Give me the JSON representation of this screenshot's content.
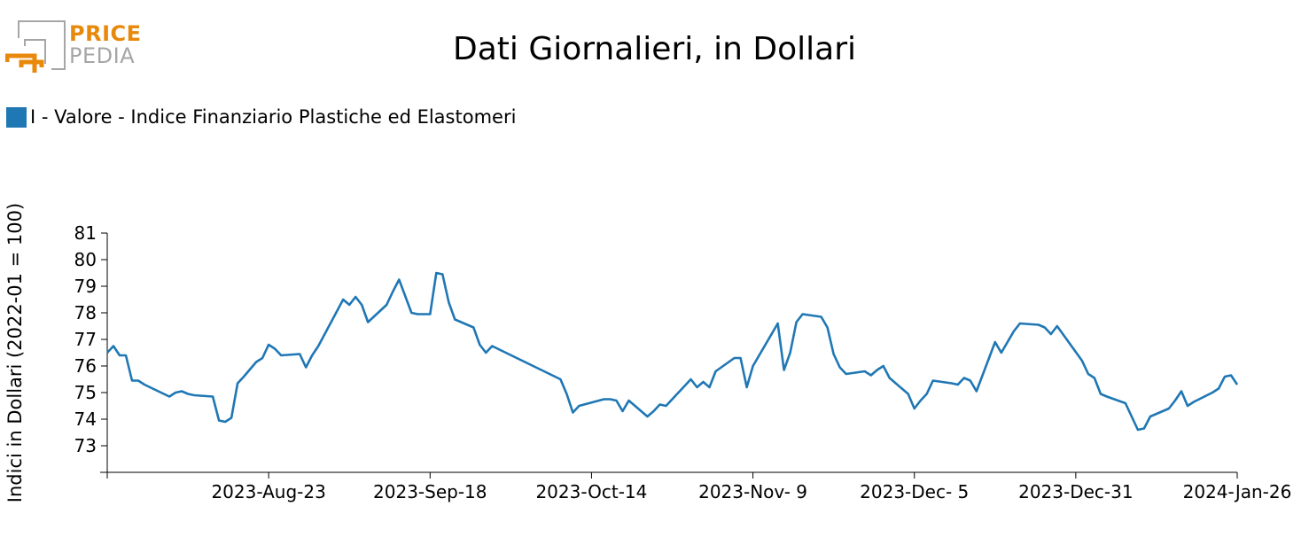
{
  "header": {
    "title": "Dati Giornalieri, in Dollari",
    "logo_line1": "PRICE",
    "logo_line2": "PEDIA",
    "logo_accent_color": "#e8890c",
    "logo_gray_color": "#a6a6a6"
  },
  "legend": {
    "label": "I - Valore - Indice Finanziario Plastiche ed Elastomeri",
    "color": "#1f77b4"
  },
  "chart_data": {
    "type": "line",
    "title": "Dati Giornalieri, in Dollari",
    "xlabel": "",
    "ylabel": "Indici in Dollari (2022-01 = 100)",
    "ylim": [
      72,
      81
    ],
    "yticks": [
      73,
      74,
      75,
      76,
      77,
      78,
      79,
      80,
      81
    ],
    "xlim": [
      "2023-07-28",
      "2024-01-26"
    ],
    "xtick_dates": [
      "2023-07-28",
      "2023-08-23",
      "2023-09-18",
      "2023-10-14",
      "2023-11-09",
      "2023-12-05",
      "2023-12-31",
      "2024-01-26"
    ],
    "xtick_labels": [
      "",
      "2023-Aug-23",
      "2023-Sep-18",
      "2023-Oct-14",
      "2023-Nov- 9",
      "2023-Dec- 5",
      "2023-Dec-31",
      "2024-Jan-26"
    ],
    "grid": false,
    "legend_position": "top-left",
    "series": [
      {
        "name": "I - Valore - Indice Finanziario Plastiche ed Elastomeri",
        "color": "#1f77b4",
        "x": [
          "2023-07-28",
          "2023-07-29",
          "2023-07-30",
          "2023-07-31",
          "2023-08-01",
          "2023-08-02",
          "2023-08-03",
          "2023-08-07",
          "2023-08-08",
          "2023-08-09",
          "2023-08-10",
          "2023-08-11",
          "2023-08-14",
          "2023-08-15",
          "2023-08-16",
          "2023-08-17",
          "2023-08-18",
          "2023-08-19",
          "2023-08-21",
          "2023-08-22",
          "2023-08-23",
          "2023-08-24",
          "2023-08-25",
          "2023-08-28",
          "2023-08-29",
          "2023-08-30",
          "2023-08-31",
          "2023-09-04",
          "2023-09-05",
          "2023-09-06",
          "2023-09-07",
          "2023-09-08",
          "2023-09-11",
          "2023-09-12",
          "2023-09-13",
          "2023-09-15",
          "2023-09-16",
          "2023-09-18",
          "2023-09-19",
          "2023-09-20",
          "2023-09-21",
          "2023-09-22",
          "2023-09-25",
          "2023-09-26",
          "2023-09-27",
          "2023-09-28",
          "2023-10-09",
          "2023-10-10",
          "2023-10-11",
          "2023-10-12",
          "2023-10-16",
          "2023-10-17",
          "2023-10-18",
          "2023-10-19",
          "2023-10-20",
          "2023-10-23",
          "2023-10-24",
          "2023-10-25",
          "2023-10-26",
          "2023-10-30",
          "2023-10-31",
          "2023-11-01",
          "2023-11-02",
          "2023-11-03",
          "2023-11-06",
          "2023-11-07",
          "2023-11-08",
          "2023-11-09",
          "2023-11-13",
          "2023-11-14",
          "2023-11-15",
          "2023-11-16",
          "2023-11-17",
          "2023-11-20",
          "2023-11-21",
          "2023-11-22",
          "2023-11-23",
          "2023-11-24",
          "2023-11-27",
          "2023-11-28",
          "2023-11-29",
          "2023-11-30",
          "2023-12-01",
          "2023-12-04",
          "2023-12-05",
          "2023-12-06",
          "2023-12-07",
          "2023-12-08",
          "2023-12-11",
          "2023-12-12",
          "2023-12-13",
          "2023-12-14",
          "2023-12-15",
          "2023-12-18",
          "2023-12-19",
          "2023-12-20",
          "2023-12-21",
          "2023-12-22",
          "2023-12-25",
          "2023-12-26",
          "2023-12-27",
          "2023-12-28",
          "2024-01-01",
          "2024-01-02",
          "2024-01-03",
          "2024-01-04",
          "2024-01-05",
          "2024-01-08",
          "2024-01-09",
          "2024-01-10",
          "2024-01-11",
          "2024-01-12",
          "2024-01-15",
          "2024-01-16",
          "2024-01-17",
          "2024-01-18",
          "2024-01-19",
          "2024-01-22",
          "2024-01-23",
          "2024-01-24",
          "2024-01-25",
          "2024-01-26"
        ],
        "y": [
          76.5,
          76.75,
          76.4,
          76.4,
          75.45,
          75.45,
          75.3,
          74.85,
          75.0,
          75.05,
          74.95,
          74.9,
          74.85,
          73.95,
          73.9,
          74.05,
          75.35,
          75.6,
          76.15,
          76.3,
          76.8,
          76.65,
          76.4,
          76.45,
          75.95,
          76.4,
          76.75,
          78.5,
          78.3,
          78.6,
          78.3,
          77.65,
          78.3,
          78.8,
          79.25,
          78.0,
          77.95,
          77.95,
          79.5,
          79.45,
          78.4,
          77.75,
          77.45,
          76.8,
          76.5,
          76.75,
          75.5,
          74.95,
          74.25,
          74.5,
          74.75,
          74.75,
          74.7,
          74.3,
          74.7,
          74.1,
          74.3,
          74.55,
          74.5,
          75.5,
          75.2,
          75.4,
          75.2,
          75.8,
          76.3,
          76.3,
          75.2,
          76.0,
          77.6,
          75.85,
          76.5,
          77.65,
          77.95,
          77.85,
          77.45,
          76.45,
          75.95,
          75.7,
          75.8,
          75.65,
          75.85,
          76.0,
          75.55,
          74.95,
          74.4,
          74.7,
          74.95,
          75.45,
          75.35,
          75.3,
          75.55,
          75.45,
          75.05,
          76.9,
          76.5,
          76.9,
          77.3,
          77.6,
          77.55,
          77.45,
          77.2,
          77.5,
          76.2,
          75.7,
          75.55,
          74.95,
          74.85,
          74.6,
          74.1,
          73.6,
          73.65,
          74.1,
          74.4,
          74.7,
          75.05,
          74.5,
          74.65,
          75.0,
          75.15,
          75.6,
          75.65,
          75.3
        ]
      }
    ]
  }
}
